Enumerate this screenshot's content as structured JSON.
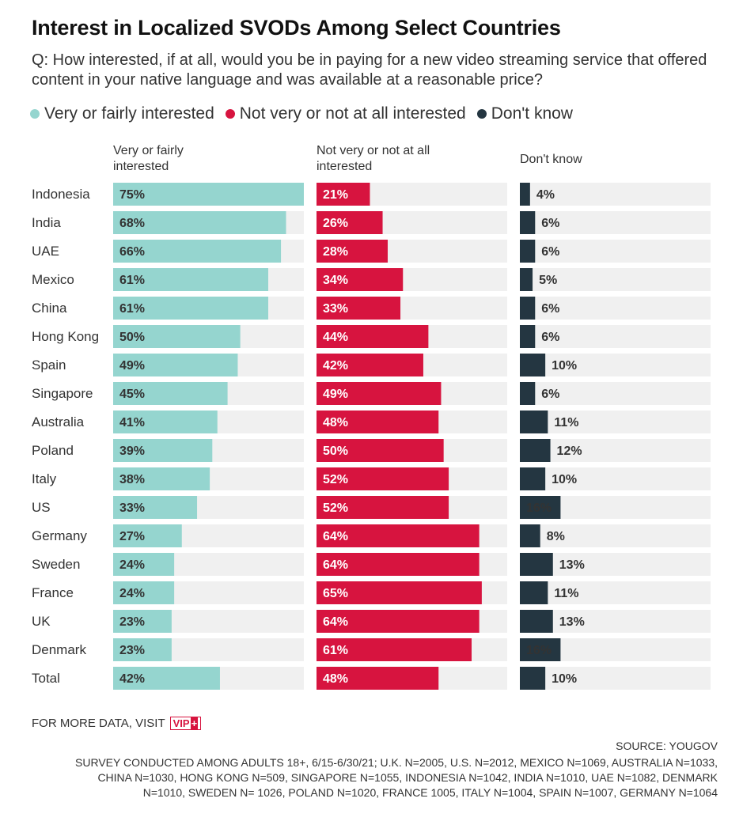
{
  "title": "Interest in Localized SVODs Among Select Countries",
  "subtitle": "Q: How interested, if at all, would you be in paying for a new video streaming service that offered content in your native language and was available at a reasonable price?",
  "legend": [
    {
      "label": "Very or fairly interested",
      "color": "#95d5cf"
    },
    {
      "label": "Not very or not at all interested",
      "color": "#d7143f"
    },
    {
      "label": "Don't know",
      "color": "#243641"
    }
  ],
  "footer": {
    "visit_label": "FOR MORE DATA, VISIT",
    "badge": "VIP",
    "badge_plus": "+",
    "source": "SOURCE: YOUGOV",
    "notes": "SURVEY CONDUCTED AMONG ADULTS 18+, 6/15-6/30/21; U.K. N=2005, U.S. N=2012, MEXICO N=1069, AUSTRALIA N=1033, CHINA N=1030, HONG KONG N=509, SINGAPORE N=1055, INDONESIA N=1042, INDIA N=1010, UAE N=1082, DENMARK N=1010, SWEDEN N= 1026, POLAND N=1020, FRANCE 1005, ITALY N=1004, SPAIN N=1007, GERMANY N=1064"
  },
  "chart_data": {
    "type": "bar",
    "orientation": "horizontal",
    "categories": [
      "Indonesia",
      "India",
      "UAE",
      "Mexico",
      "China",
      "Hong Kong",
      "Spain",
      "Singapore",
      "Australia",
      "Poland",
      "Italy",
      "US",
      "Germany",
      "Sweden",
      "France",
      "UK",
      "Denmark",
      "Total"
    ],
    "series": [
      {
        "name": "Very or fairly interested",
        "header": "Very or fairly interested",
        "color": "#95d5cf",
        "label_color": "#333333",
        "values": [
          75,
          68,
          66,
          61,
          61,
          50,
          49,
          45,
          41,
          39,
          38,
          33,
          27,
          24,
          24,
          23,
          23,
          42
        ]
      },
      {
        "name": "Not very or not at all interested",
        "header": "Not very or not at all interested",
        "color": "#d7143f",
        "label_color": "#ffffff",
        "values": [
          21,
          26,
          28,
          34,
          33,
          44,
          42,
          49,
          48,
          50,
          52,
          52,
          64,
          64,
          65,
          64,
          61,
          48
        ]
      },
      {
        "name": "Don't know",
        "header": "Don't know",
        "color": "#243641",
        "label_color": "#333333",
        "values": [
          4,
          6,
          6,
          5,
          6,
          6,
          10,
          6,
          11,
          12,
          10,
          16,
          8,
          13,
          11,
          13,
          16,
          10
        ]
      }
    ],
    "value_suffix": "%",
    "panel_max": [
      75,
      75,
      75
    ],
    "track_color": "#f0f0f0"
  }
}
